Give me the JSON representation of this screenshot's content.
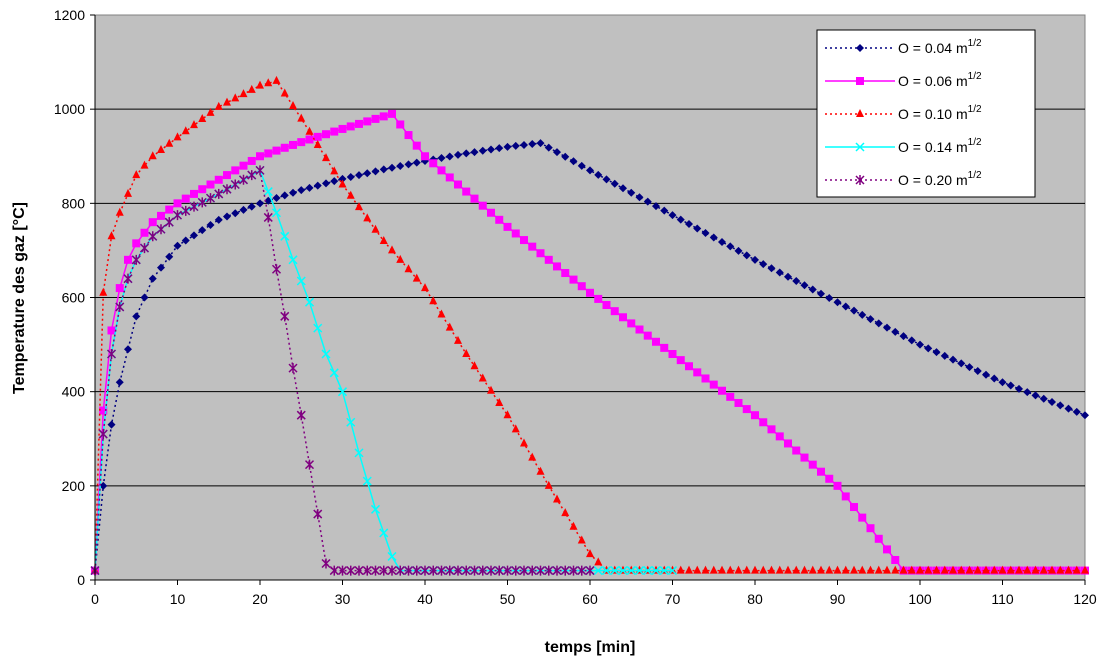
{
  "chart_data": {
    "type": "line",
    "title": "",
    "xlabel": "temps [min]",
    "ylabel": "Temperature des gaz [°C]",
    "xlim": [
      0,
      120
    ],
    "ylim": [
      0,
      1200
    ],
    "x_ticks": [
      "0",
      "10",
      "20",
      "30",
      "40",
      "50",
      "60",
      "70",
      "80",
      "90",
      "100",
      "110",
      "120"
    ],
    "y_ticks": [
      "0",
      "200",
      "400",
      "600",
      "800",
      "1000",
      "1200"
    ],
    "grid": "horizontal",
    "plot_background": "#c0c0c0",
    "legend_position": "top-right",
    "series": [
      {
        "name": "O = 0.04 m",
        "sup": "1/2",
        "color": "#000080",
        "marker": "diamond",
        "line": "dotted",
        "x": [
          0,
          1,
          2,
          3,
          5,
          7,
          10,
          15,
          20,
          25,
          30,
          35,
          40,
          45,
          50,
          54,
          60,
          70,
          80,
          90,
          100,
          110,
          120
        ],
        "values": [
          20,
          200,
          330,
          420,
          560,
          640,
          710,
          765,
          800,
          828,
          852,
          872,
          890,
          906,
          920,
          928,
          870,
          775,
          680,
          590,
          500,
          420,
          350
        ]
      },
      {
        "name": "O = 0.06 m",
        "sup": "1/2",
        "color": "#ff00ff",
        "marker": "square",
        "line": "solid",
        "x": [
          0,
          1,
          2,
          3,
          4,
          5,
          7,
          10,
          15,
          20,
          25,
          30,
          36,
          40,
          50,
          60,
          70,
          80,
          90,
          98,
          100,
          110,
          120
        ],
        "values": [
          20,
          360,
          530,
          620,
          680,
          715,
          760,
          800,
          850,
          900,
          930,
          958,
          990,
          900,
          750,
          610,
          480,
          350,
          200,
          20,
          20,
          20,
          20
        ]
      },
      {
        "name": "O = 0.10 m",
        "sup": "1/2",
        "color": "#ff0000",
        "marker": "triangle",
        "line": "dotted",
        "x": [
          0,
          1,
          2,
          3,
          5,
          7,
          10,
          15,
          20,
          22,
          25,
          30,
          35,
          40,
          45,
          50,
          55,
          60,
          62,
          70,
          80,
          90,
          100,
          110,
          120
        ],
        "values": [
          20,
          610,
          730,
          780,
          860,
          900,
          940,
          1005,
          1050,
          1060,
          980,
          840,
          720,
          620,
          480,
          350,
          200,
          55,
          20,
          20,
          20,
          20,
          20,
          20,
          20
        ]
      },
      {
        "name": "O = 0.14 m",
        "sup": "1/2",
        "color": "#00ffff",
        "marker": "x",
        "line": "solid",
        "x": [
          0,
          1,
          2,
          3,
          4,
          5,
          7,
          10,
          15,
          20,
          22,
          24,
          26,
          28,
          30,
          32,
          34,
          36,
          37,
          40,
          50,
          60,
          70
        ],
        "values": [
          20,
          310,
          480,
          580,
          640,
          680,
          730,
          775,
          820,
          870,
          780,
          680,
          590,
          480,
          400,
          270,
          150,
          50,
          20,
          20,
          20,
          20,
          20
        ]
      },
      {
        "name": "O = 0.20 m",
        "sup": "1/2",
        "color": "#800080",
        "marker": "asterisk",
        "line": "dotted",
        "x": [
          0,
          1,
          2,
          3,
          4,
          5,
          7,
          10,
          15,
          20,
          21,
          22,
          23,
          24,
          25,
          26,
          27,
          28,
          29,
          30,
          40,
          50,
          60
        ],
        "values": [
          20,
          310,
          480,
          580,
          640,
          680,
          730,
          775,
          820,
          870,
          770,
          660,
          560,
          450,
          350,
          245,
          140,
          35,
          20,
          20,
          20,
          20,
          20
        ]
      }
    ]
  }
}
